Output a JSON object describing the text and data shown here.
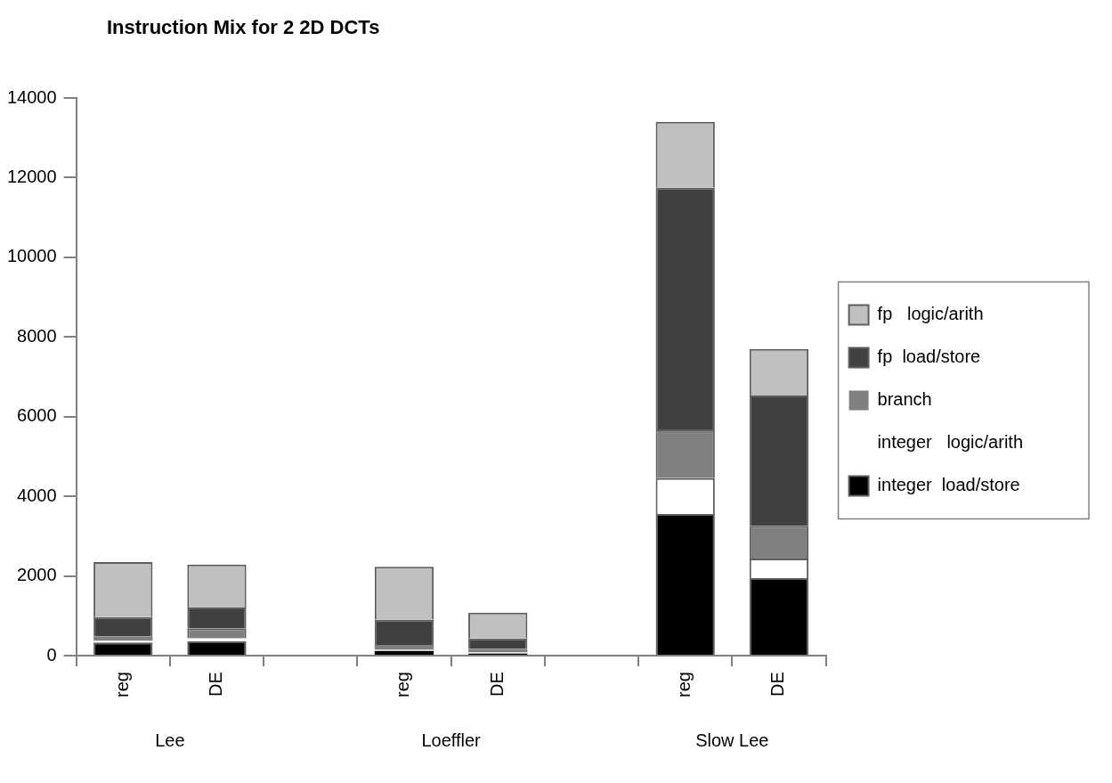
{
  "chart_data": {
    "type": "bar",
    "title": "Instruction Mix for 2 2D DCTs",
    "stacked": true,
    "legend": "right",
    "grid": false,
    "categories": [
      "reg",
      "DE",
      null,
      "reg",
      "DE",
      null,
      "reg",
      "DE"
    ],
    "series": [
      {
        "name": "integer  load/store",
        "color": "#000000",
        "values": [
          330,
          360,
          null,
          120,
          50,
          null,
          3560,
          1950
        ]
      },
      {
        "name": "integer   logic/arith",
        "color": "#ffffff",
        "values": [
          40,
          70,
          null,
          30,
          30,
          null,
          900,
          490
        ]
      },
      {
        "name": "branch",
        "color": "#808080",
        "values": [
          120,
          260,
          null,
          120,
          90,
          null,
          1220,
          820
        ]
      },
      {
        "name": "fp  load/store",
        "color": "#404040",
        "values": [
          480,
          520,
          null,
          640,
          260,
          null,
          6070,
          3270
        ]
      },
      {
        "name": "fp   logic/arith",
        "color": "#c0c0c0",
        "values": [
          1380,
          1080,
          null,
          1320,
          650,
          null,
          1650,
          1170
        ]
      }
    ],
    "ylim": [
      0,
      14000
    ],
    "yticks": [
      0,
      2000,
      4000,
      6000,
      8000,
      10000,
      12000,
      14000
    ],
    "annotations": [
      "Lee",
      "Loeffler",
      "Slow Lee"
    ]
  }
}
